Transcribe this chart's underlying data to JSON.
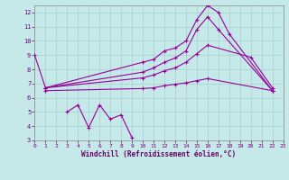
{
  "xlabel": "Windchill (Refroidissement éolien,°C)",
  "xlim": [
    0,
    23
  ],
  "ylim": [
    3,
    12.5
  ],
  "yticks": [
    3,
    4,
    5,
    6,
    7,
    8,
    9,
    10,
    11,
    12
  ],
  "xticks": [
    0,
    1,
    2,
    3,
    4,
    5,
    6,
    7,
    8,
    9,
    10,
    11,
    12,
    13,
    14,
    15,
    16,
    17,
    18,
    19,
    20,
    21,
    22,
    23
  ],
  "bg": "#c5e8e8",
  "grid_color": "#a8d0cc",
  "lc": "#990099",
  "lw": 0.8,
  "lines": [
    {
      "x": [
        0,
        1,
        10,
        11,
        12,
        13,
        14,
        15,
        16,
        17,
        18,
        22
      ],
      "y": [
        9.0,
        6.7,
        8.5,
        8.7,
        9.3,
        9.5,
        10.0,
        11.5,
        12.5,
        12.0,
        10.5,
        6.5
      ]
    },
    {
      "x": [
        1,
        10,
        11,
        12,
        13,
        14,
        15,
        16,
        17,
        22
      ],
      "y": [
        6.7,
        7.8,
        8.1,
        8.5,
        8.8,
        9.3,
        10.8,
        11.7,
        10.8,
        6.5
      ]
    },
    {
      "x": [
        1,
        10,
        11,
        12,
        13,
        14,
        15,
        16,
        20,
        22
      ],
      "y": [
        6.7,
        7.4,
        7.6,
        7.9,
        8.1,
        8.5,
        9.1,
        9.7,
        8.85,
        6.7
      ]
    },
    {
      "x": [
        1,
        10,
        11,
        12,
        13,
        14,
        15,
        16,
        22
      ],
      "y": [
        6.5,
        6.65,
        6.7,
        6.85,
        6.95,
        7.05,
        7.2,
        7.35,
        6.5
      ]
    },
    {
      "x": [
        3,
        4,
        5,
        6,
        7,
        8,
        9
      ],
      "y": [
        5.0,
        5.5,
        3.9,
        5.5,
        4.5,
        4.8,
        3.2
      ]
    }
  ]
}
